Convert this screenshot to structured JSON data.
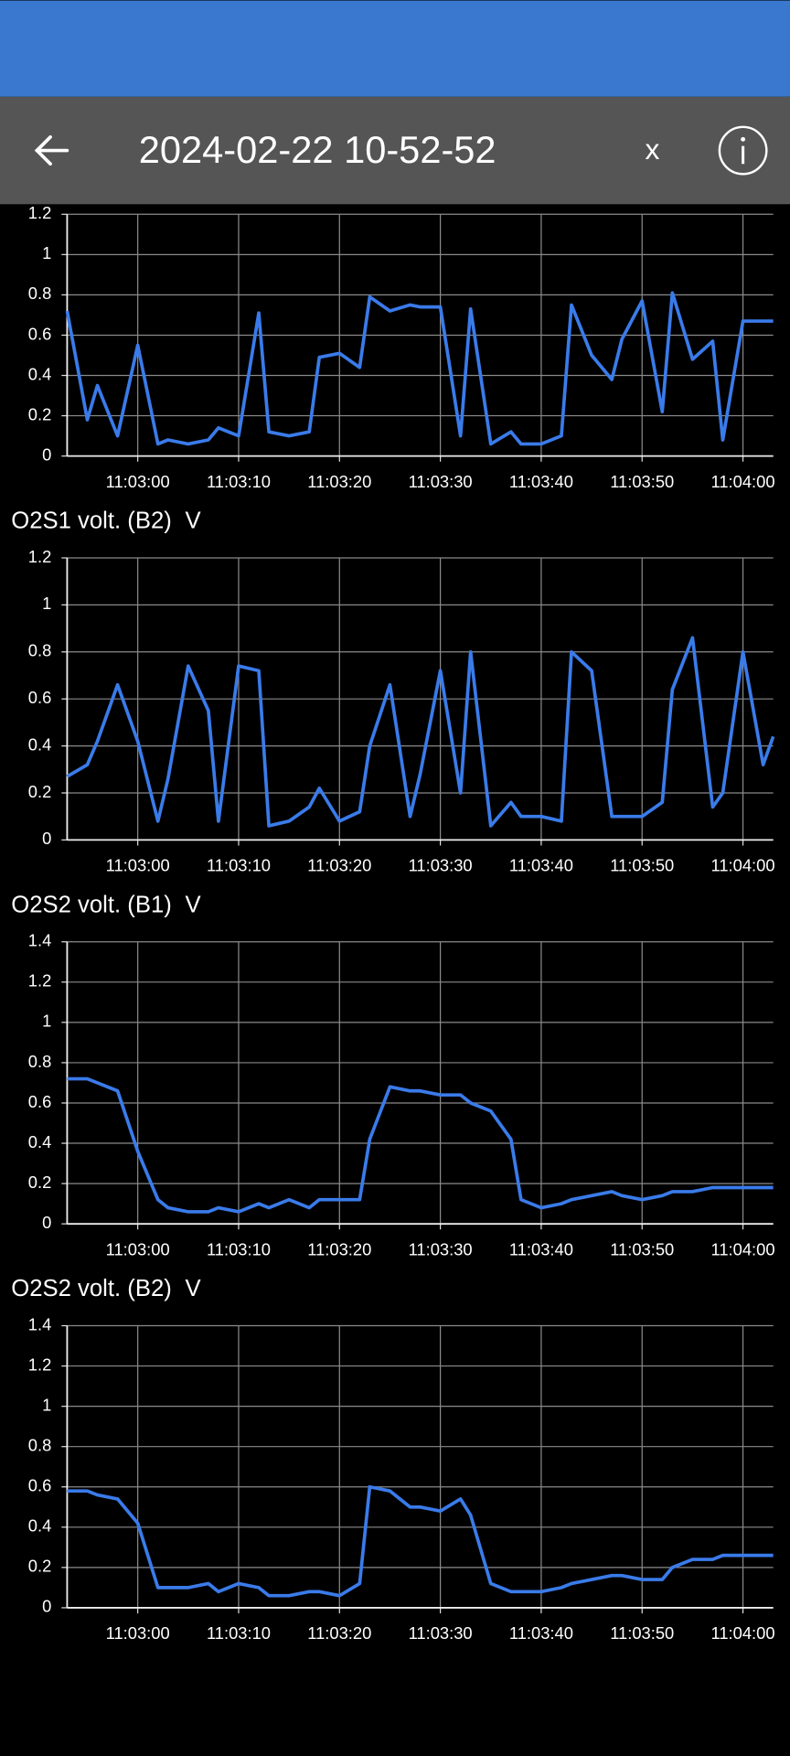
{
  "header": {
    "title": "2024-02-22 10-52-52",
    "close": "x"
  },
  "chart_data": [
    {
      "type": "line",
      "x": [
        "11:02:53",
        "11:02:55",
        "11:02:56",
        "11:02:58",
        "11:03:00",
        "11:03:02",
        "11:03:03",
        "11:03:05",
        "11:03:07",
        "11:03:08",
        "11:03:10",
        "11:03:12",
        "11:03:13",
        "11:03:15",
        "11:03:17",
        "11:03:18",
        "11:03:20",
        "11:03:22",
        "11:03:23",
        "11:03:25",
        "11:03:27",
        "11:03:28",
        "11:03:30",
        "11:03:32",
        "11:03:33",
        "11:03:35",
        "11:03:37",
        "11:03:38",
        "11:03:40",
        "11:03:42",
        "11:03:43",
        "11:03:45",
        "11:03:47",
        "11:03:48",
        "11:03:50",
        "11:03:52",
        "11:03:53",
        "11:03:55",
        "11:03:57",
        "11:03:58",
        "11:04:00",
        "11:04:02",
        "11:04:03"
      ],
      "series": [
        {
          "color": "#3a7bea",
          "values": [
            0.72,
            0.18,
            0.35,
            0.1,
            0.55,
            0.06,
            0.08,
            0.06,
            0.08,
            0.14,
            0.1,
            0.71,
            0.12,
            0.1,
            0.12,
            0.49,
            0.51,
            0.44,
            0.79,
            0.72,
            0.75,
            0.74,
            0.74,
            0.1,
            0.73,
            0.06,
            0.12,
            0.06,
            0.06,
            0.1,
            0.75,
            0.5,
            0.38,
            0.58,
            0.77,
            0.22,
            0.81,
            0.48,
            0.57,
            0.08,
            0.67,
            0.67,
            0.67
          ]
        }
      ],
      "xlim": [
        "11:02:53",
        "11:04:03"
      ],
      "xticks": [
        "11:03:00",
        "11:03:10",
        "11:03:20",
        "11:03:30",
        "11:03:40",
        "11:03:50",
        "11:04:00"
      ],
      "ylim": [
        0,
        1.2
      ],
      "yticks": [
        0,
        0.2,
        0.4,
        0.6,
        0.8,
        1,
        1.2
      ],
      "grid": true
    },
    {
      "type": "line",
      "title": "O2S1 volt. (B2)",
      "unit": "V",
      "x": [
        "11:02:53",
        "11:02:55",
        "11:02:56",
        "11:02:58",
        "11:03:00",
        "11:03:02",
        "11:03:03",
        "11:03:05",
        "11:03:07",
        "11:03:08",
        "11:03:10",
        "11:03:12",
        "11:03:13",
        "11:03:15",
        "11:03:17",
        "11:03:18",
        "11:03:20",
        "11:03:22",
        "11:03:23",
        "11:03:25",
        "11:03:27",
        "11:03:28",
        "11:03:30",
        "11:03:32",
        "11:03:33",
        "11:03:35",
        "11:03:37",
        "11:03:38",
        "11:03:40",
        "11:03:42",
        "11:03:43",
        "11:03:45",
        "11:03:47",
        "11:03:48",
        "11:03:50",
        "11:03:52",
        "11:03:53",
        "11:03:55",
        "11:03:57",
        "11:03:58",
        "11:04:00",
        "11:04:02",
        "11:04:03"
      ],
      "series": [
        {
          "color": "#3a7bea",
          "values": [
            0.27,
            0.32,
            0.42,
            0.66,
            0.42,
            0.08,
            0.26,
            0.74,
            0.55,
            0.08,
            0.74,
            0.72,
            0.06,
            0.08,
            0.14,
            0.22,
            0.08,
            0.12,
            0.4,
            0.66,
            0.1,
            0.28,
            0.72,
            0.2,
            0.8,
            0.06,
            0.16,
            0.1,
            0.1,
            0.08,
            0.8,
            0.72,
            0.1,
            0.1,
            0.1,
            0.16,
            0.64,
            0.86,
            0.14,
            0.2,
            0.8,
            0.32,
            0.44
          ]
        }
      ],
      "xlim": [
        "11:02:53",
        "11:04:03"
      ],
      "xticks": [
        "11:03:00",
        "11:03:10",
        "11:03:20",
        "11:03:30",
        "11:03:40",
        "11:03:50",
        "11:04:00"
      ],
      "ylim": [
        0,
        1.2
      ],
      "yticks": [
        0,
        0.2,
        0.4,
        0.6,
        0.8,
        1,
        1.2
      ],
      "grid": true
    },
    {
      "type": "line",
      "title": "O2S2 volt. (B1)",
      "unit": "V",
      "x": [
        "11:02:53",
        "11:02:55",
        "11:02:56",
        "11:02:58",
        "11:03:00",
        "11:03:02",
        "11:03:03",
        "11:03:05",
        "11:03:07",
        "11:03:08",
        "11:03:10",
        "11:03:12",
        "11:03:13",
        "11:03:15",
        "11:03:17",
        "11:03:18",
        "11:03:20",
        "11:03:22",
        "11:03:23",
        "11:03:25",
        "11:03:27",
        "11:03:28",
        "11:03:30",
        "11:03:32",
        "11:03:33",
        "11:03:35",
        "11:03:37",
        "11:03:38",
        "11:03:40",
        "11:03:42",
        "11:03:43",
        "11:03:45",
        "11:03:47",
        "11:03:48",
        "11:03:50",
        "11:03:52",
        "11:03:53",
        "11:03:55",
        "11:03:57",
        "11:03:58",
        "11:04:00",
        "11:04:02",
        "11:04:03"
      ],
      "series": [
        {
          "color": "#3a7bea",
          "values": [
            0.72,
            0.72,
            0.7,
            0.66,
            0.36,
            0.12,
            0.08,
            0.06,
            0.06,
            0.08,
            0.06,
            0.1,
            0.08,
            0.12,
            0.08,
            0.12,
            0.12,
            0.12,
            0.42,
            0.68,
            0.66,
            0.66,
            0.64,
            0.64,
            0.6,
            0.56,
            0.42,
            0.12,
            0.08,
            0.1,
            0.12,
            0.14,
            0.16,
            0.14,
            0.12,
            0.14,
            0.16,
            0.16,
            0.18,
            0.18,
            0.18,
            0.18,
            0.18
          ]
        }
      ],
      "xlim": [
        "11:02:53",
        "11:04:03"
      ],
      "xticks": [
        "11:03:00",
        "11:03:10",
        "11:03:20",
        "11:03:30",
        "11:03:40",
        "11:03:50",
        "11:04:00"
      ],
      "ylim": [
        0,
        1.4
      ],
      "yticks": [
        0,
        0.2,
        0.4,
        0.6,
        0.8,
        1,
        1.2,
        1.4
      ],
      "grid": true
    },
    {
      "type": "line",
      "title": "O2S2 volt. (B2)",
      "unit": "V",
      "x": [
        "11:02:53",
        "11:02:55",
        "11:02:56",
        "11:02:58",
        "11:03:00",
        "11:03:02",
        "11:03:03",
        "11:03:05",
        "11:03:07",
        "11:03:08",
        "11:03:10",
        "11:03:12",
        "11:03:13",
        "11:03:15",
        "11:03:17",
        "11:03:18",
        "11:03:20",
        "11:03:22",
        "11:03:23",
        "11:03:25",
        "11:03:27",
        "11:03:28",
        "11:03:30",
        "11:03:32",
        "11:03:33",
        "11:03:35",
        "11:03:37",
        "11:03:38",
        "11:03:40",
        "11:03:42",
        "11:03:43",
        "11:03:45",
        "11:03:47",
        "11:03:48",
        "11:03:50",
        "11:03:52",
        "11:03:53",
        "11:03:55",
        "11:03:57",
        "11:03:58",
        "11:04:00",
        "11:04:02",
        "11:04:03"
      ],
      "series": [
        {
          "color": "#3a7bea",
          "values": [
            0.58,
            0.58,
            0.56,
            0.54,
            0.42,
            0.1,
            0.1,
            0.1,
            0.12,
            0.08,
            0.12,
            0.1,
            0.06,
            0.06,
            0.08,
            0.08,
            0.06,
            0.12,
            0.6,
            0.58,
            0.5,
            0.5,
            0.48,
            0.54,
            0.46,
            0.12,
            0.08,
            0.08,
            0.08,
            0.1,
            0.12,
            0.14,
            0.16,
            0.16,
            0.14,
            0.14,
            0.2,
            0.24,
            0.24,
            0.26,
            0.26,
            0.26,
            0.26
          ]
        }
      ],
      "xlim": [
        "11:02:53",
        "11:04:03"
      ],
      "xticks": [
        "11:03:00",
        "11:03:10",
        "11:03:20",
        "11:03:30",
        "11:03:40",
        "11:03:50",
        "11:04:00"
      ],
      "ylim": [
        0,
        1.4
      ],
      "yticks": [
        0,
        0.2,
        0.4,
        0.6,
        0.8,
        1,
        1.2,
        1.4
      ],
      "grid": true
    }
  ]
}
